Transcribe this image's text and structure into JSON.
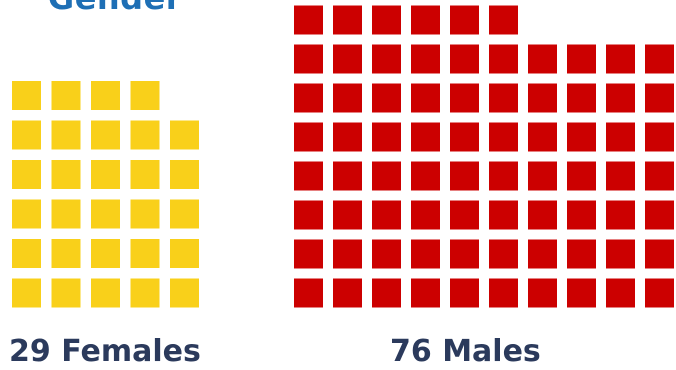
{
  "chart_data": {
    "type": "waffle",
    "title": "Gender",
    "unit": "person",
    "groups": [
      {
        "key": "females",
        "label": "29 Females",
        "count": 29,
        "color": "#F9D01A"
      },
      {
        "key": "males",
        "label": "76 Males",
        "count": 76,
        "color": "#CC0000"
      }
    ],
    "title_color": "#1E6FB5",
    "label_color": "#2B3A5C"
  }
}
